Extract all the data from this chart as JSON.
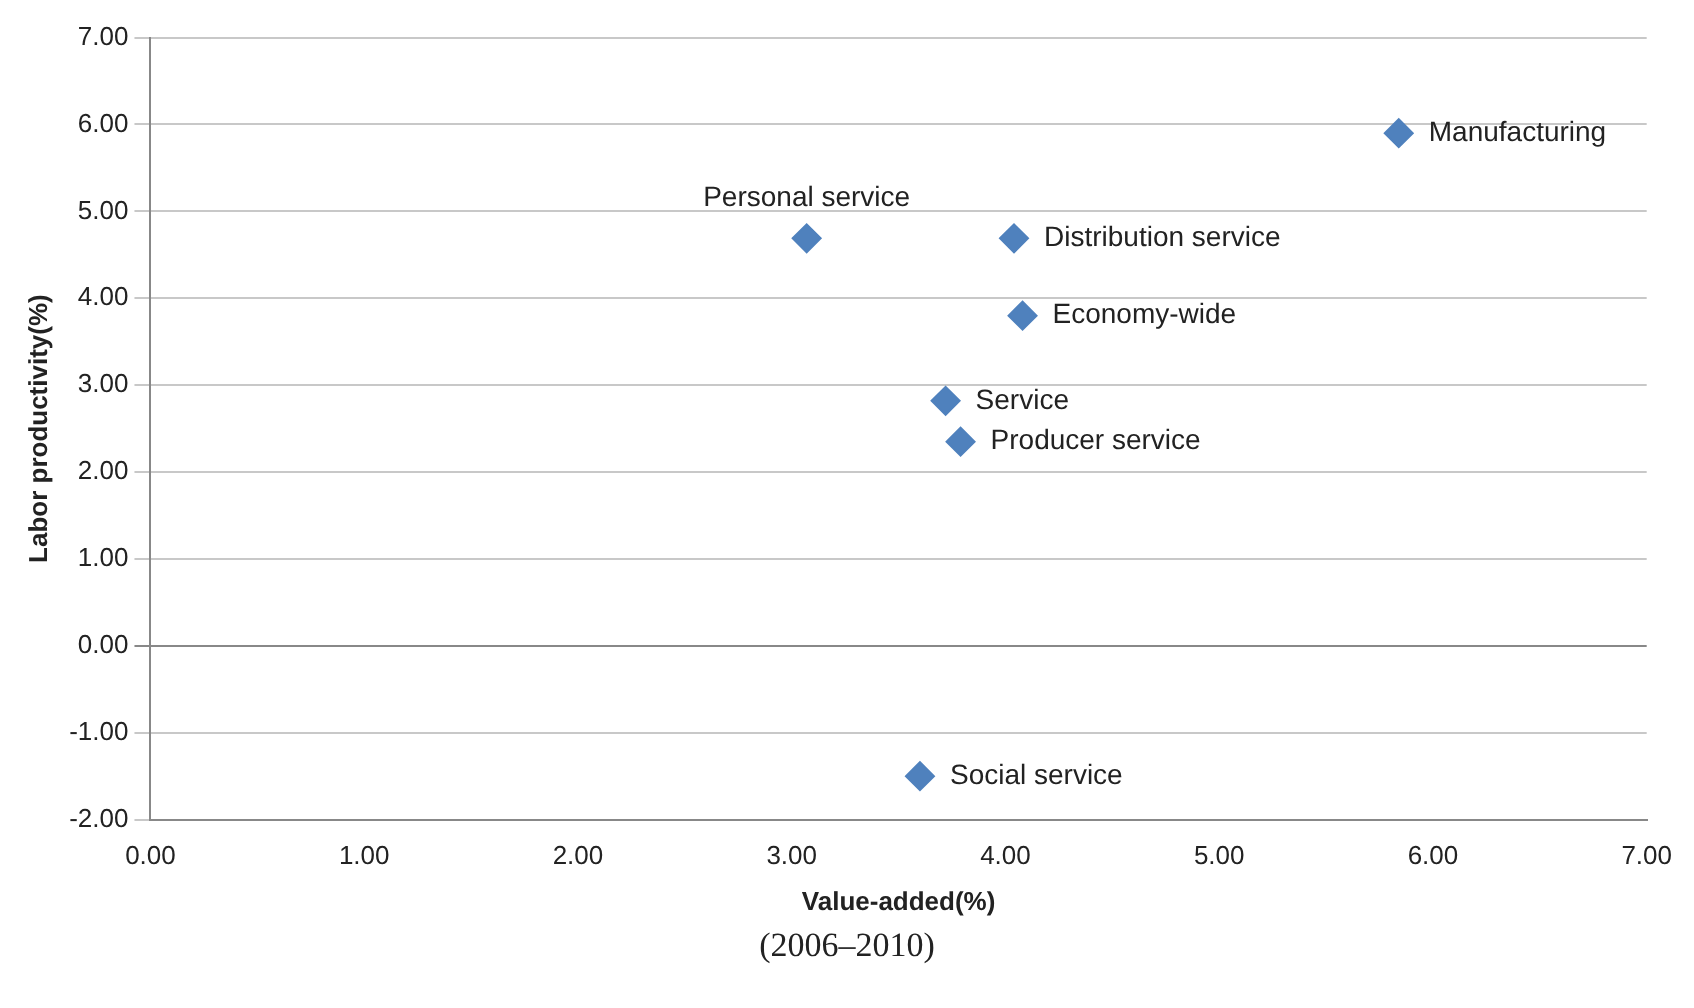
{
  "chart_data": {
    "type": "scatter",
    "xlabel": "Value-added(%)",
    "ylabel": "Labor productivity(%)",
    "annotations": [
      "(2006–2010)"
    ],
    "xlim": [
      0,
      7
    ],
    "ylim": [
      -2,
      7
    ],
    "xticks": [
      {
        "value": 0,
        "label": "0.00"
      },
      {
        "value": 1,
        "label": "1.00"
      },
      {
        "value": 2,
        "label": "2.00"
      },
      {
        "value": 3,
        "label": "3.00"
      },
      {
        "value": 4,
        "label": "4.00"
      },
      {
        "value": 5,
        "label": "5.00"
      },
      {
        "value": 6,
        "label": "6.00"
      },
      {
        "value": 7,
        "label": "7.00"
      }
    ],
    "yticks": [
      {
        "value": -2,
        "label": "-2.00"
      },
      {
        "value": -1,
        "label": "-1.00"
      },
      {
        "value": 0,
        "label": "0.00"
      },
      {
        "value": 1,
        "label": "1.00"
      },
      {
        "value": 2,
        "label": "2.00"
      },
      {
        "value": 3,
        "label": "3.00"
      },
      {
        "value": 4,
        "label": "4.00"
      },
      {
        "value": 5,
        "label": "5.00"
      },
      {
        "value": 6,
        "label": "6.00"
      },
      {
        "value": 7,
        "label": "7.00"
      }
    ],
    "grid": "y",
    "legend": false,
    "marker": "diamond",
    "series": [
      {
        "name": "Manufacturing",
        "color": "#4f81bd",
        "x": [
          5.84
        ],
        "values": [
          5.9
        ]
      },
      {
        "name": "Personal service",
        "color": "#4f81bd",
        "x": [
          3.07
        ],
        "values": [
          4.69
        ]
      },
      {
        "name": "Distribution service",
        "color": "#4f81bd",
        "x": [
          4.04
        ],
        "values": [
          4.69
        ]
      },
      {
        "name": "Economy-wide",
        "color": "#4f81bd",
        "x": [
          4.08
        ],
        "values": [
          3.8
        ]
      },
      {
        "name": "Service",
        "color": "#4f81bd",
        "x": [
          3.72
        ],
        "values": [
          2.82
        ]
      },
      {
        "name": "Producer service",
        "color": "#4f81bd",
        "x": [
          3.79
        ],
        "values": [
          2.35
        ]
      },
      {
        "name": "Social service",
        "color": "#4f81bd",
        "x": [
          3.6
        ],
        "values": [
          -1.5
        ]
      }
    ]
  }
}
